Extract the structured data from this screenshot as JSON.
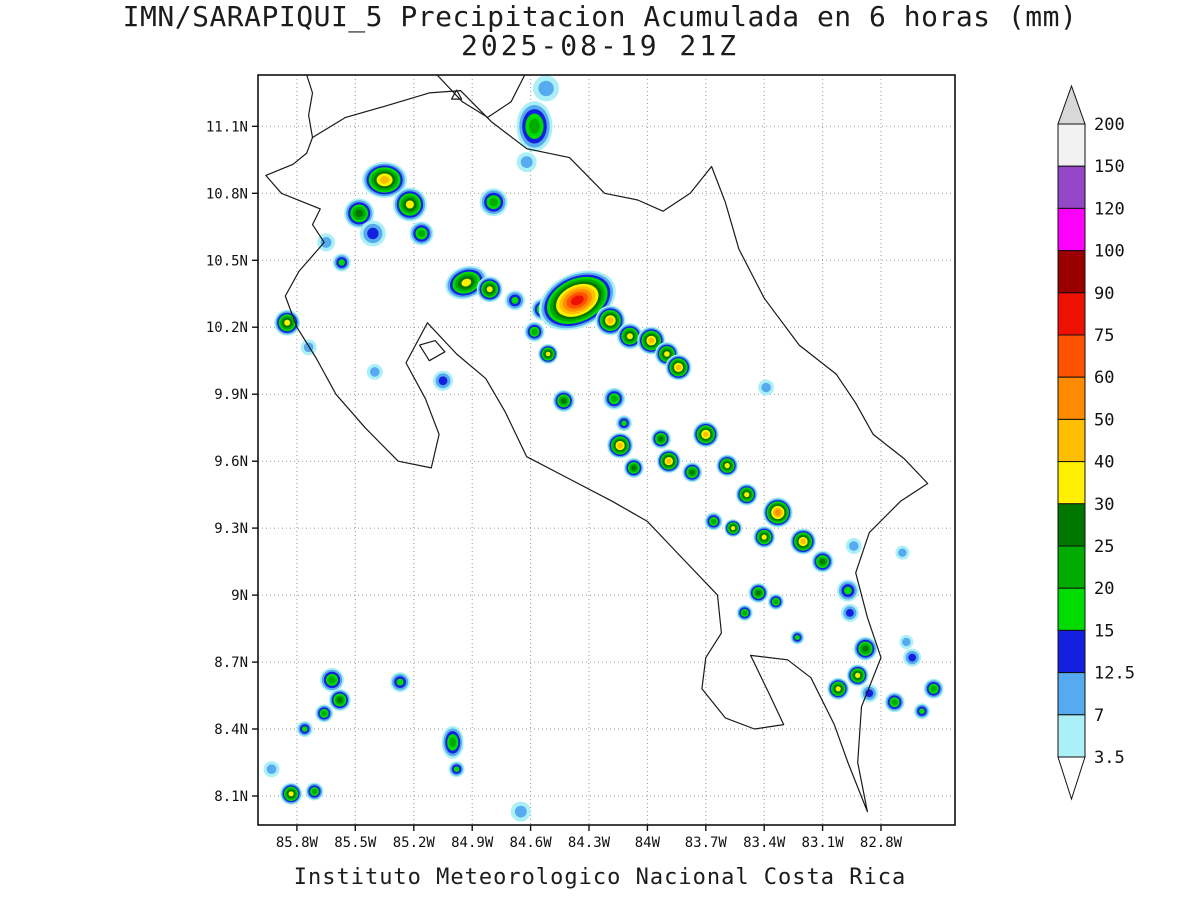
{
  "title": {
    "line1": "IMN/SARAPIQUI_5 Precipitacion Acumulada en 6 horas (mm)",
    "line2": "2025-08-19 21Z"
  },
  "footer": "Instituto Meteorologico Nacional Costa Rica",
  "chart_data": {
    "type": "heatmap",
    "title": "IMN/SARAPIQUI_5 Precipitacion Acumulada en 6 horas (mm)",
    "subtitle": "2025-08-19 21Z",
    "model": "IMN/SARAPIQUI_5",
    "variable": "Precipitacion Acumulada en 6 horas",
    "units": "mm",
    "valid_time": "2025-08-19 21Z",
    "attribution": "Instituto Meteorologico Nacional Costa Rica",
    "axes": {
      "lon_min": -86.0,
      "lon_max": -82.42,
      "lat_min": 7.97,
      "lat_max": 11.33,
      "grid": "dotted",
      "lat_ticks": [
        {
          "value": 11.1,
          "label": "11.1N"
        },
        {
          "value": 10.8,
          "label": "10.8N"
        },
        {
          "value": 10.5,
          "label": "10.5N"
        },
        {
          "value": 10.2,
          "label": "10.2N"
        },
        {
          "value": 9.9,
          "label": "9.9N"
        },
        {
          "value": 9.6,
          "label": "9.6N"
        },
        {
          "value": 9.3,
          "label": "9.3N"
        },
        {
          "value": 9.0,
          "label": "9N"
        },
        {
          "value": 8.7,
          "label": "8.7N"
        },
        {
          "value": 8.4,
          "label": "8.4N"
        },
        {
          "value": 8.1,
          "label": "8.1N"
        }
      ],
      "lon_ticks": [
        {
          "value": -85.8,
          "label": "85.8W"
        },
        {
          "value": -85.5,
          "label": "85.5W"
        },
        {
          "value": -85.2,
          "label": "85.2W"
        },
        {
          "value": -84.9,
          "label": "84.9W"
        },
        {
          "value": -84.6,
          "label": "84.6W"
        },
        {
          "value": -84.3,
          "label": "84.3W"
        },
        {
          "value": -84.0,
          "label": "84W"
        },
        {
          "value": -83.7,
          "label": "83.7W"
        },
        {
          "value": -83.4,
          "label": "83.4W"
        },
        {
          "value": -83.1,
          "label": "83.1W"
        },
        {
          "value": -82.8,
          "label": "82.8W"
        }
      ]
    },
    "levels": [
      {
        "value": 3.5,
        "color": "#ABF0F6"
      },
      {
        "value": 7,
        "color": "#56AAEF"
      },
      {
        "value": 12.5,
        "color": "#1420E0"
      },
      {
        "value": 15,
        "color": "#00DC00"
      },
      {
        "value": 20,
        "color": "#00AC00"
      },
      {
        "value": 25,
        "color": "#007800"
      },
      {
        "value": 30,
        "color": "#FFF000"
      },
      {
        "value": 40,
        "color": "#FFBE00"
      },
      {
        "value": 50,
        "color": "#FF8C00"
      },
      {
        "value": 60,
        "color": "#FF5200"
      },
      {
        "value": 75,
        "color": "#EE1000"
      },
      {
        "value": 90,
        "color": "#9B0000"
      }
    ],
    "colorbar": {
      "labels": [
        "200",
        "150",
        "120",
        "100",
        "90",
        "75",
        "60",
        "50",
        "40",
        "30",
        "25",
        "20",
        "15",
        "12.5",
        "7",
        "3.5"
      ],
      "segments_top_to_bottom": [
        "#F2F2F2",
        "#9448C8",
        "#FF00FF",
        "#9B0000",
        "#EE1000",
        "#FF5200",
        "#FF8C00",
        "#FFBE00",
        "#FFF000",
        "#007800",
        "#00AC00",
        "#00DC00",
        "#1420E0",
        "#56AAEF",
        "#ABF0F6"
      ],
      "top_arrow_color": "#D8D8D8",
      "bottom_arrow_color": "#FFFFFF"
    },
    "island_marker": {
      "lon": -84.98,
      "lat": 11.24
    },
    "map_paths": [
      {
        "name": "costa-rica-outline",
        "closed": true,
        "points": [
          [
            -85.72,
            11.05
          ],
          [
            -85.55,
            11.14
          ],
          [
            -85.35,
            11.19
          ],
          [
            -85.12,
            11.25
          ],
          [
            -84.96,
            11.26
          ],
          [
            -84.8,
            11.12
          ],
          [
            -84.62,
            11.0
          ],
          [
            -84.4,
            10.96
          ],
          [
            -84.22,
            10.8
          ],
          [
            -84.05,
            10.77
          ],
          [
            -83.92,
            10.72
          ],
          [
            -83.78,
            10.8
          ],
          [
            -83.67,
            10.92
          ],
          [
            -83.6,
            10.76
          ],
          [
            -83.53,
            10.55
          ],
          [
            -83.4,
            10.33
          ],
          [
            -83.22,
            10.12
          ],
          [
            -83.03,
            9.99
          ],
          [
            -82.93,
            9.86
          ],
          [
            -82.84,
            9.72
          ],
          [
            -82.68,
            9.61
          ],
          [
            -82.56,
            9.5
          ],
          [
            -82.7,
            9.42
          ],
          [
            -82.86,
            9.28
          ],
          [
            -82.93,
            9.1
          ],
          [
            -82.87,
            8.9
          ],
          [
            -82.8,
            8.72
          ],
          [
            -82.9,
            8.5
          ],
          [
            -82.92,
            8.25
          ],
          [
            -82.87,
            8.03
          ],
          [
            -82.97,
            8.25
          ],
          [
            -83.04,
            8.42
          ],
          [
            -83.16,
            8.63
          ],
          [
            -83.28,
            8.71
          ],
          [
            -83.47,
            8.73
          ],
          [
            -83.37,
            8.55
          ],
          [
            -83.3,
            8.42
          ],
          [
            -83.45,
            8.4
          ],
          [
            -83.6,
            8.45
          ],
          [
            -83.72,
            8.58
          ],
          [
            -83.7,
            8.72
          ],
          [
            -83.62,
            8.83
          ],
          [
            -83.64,
            9.0
          ],
          [
            -83.88,
            9.22
          ],
          [
            -84.0,
            9.33
          ],
          [
            -84.18,
            9.42
          ],
          [
            -84.4,
            9.52
          ],
          [
            -84.62,
            9.62
          ],
          [
            -84.73,
            9.82
          ],
          [
            -84.83,
            9.97
          ],
          [
            -84.98,
            10.08
          ],
          [
            -85.13,
            10.22
          ],
          [
            -85.24,
            10.04
          ],
          [
            -85.14,
            9.88
          ],
          [
            -85.07,
            9.72
          ],
          [
            -85.11,
            9.57
          ],
          [
            -85.28,
            9.6
          ],
          [
            -85.45,
            9.75
          ],
          [
            -85.6,
            9.9
          ],
          [
            -85.7,
            10.06
          ],
          [
            -85.8,
            10.2
          ],
          [
            -85.86,
            10.34
          ],
          [
            -85.79,
            10.45
          ],
          [
            -85.66,
            10.58
          ],
          [
            -85.72,
            10.66
          ],
          [
            -85.68,
            10.73
          ],
          [
            -85.88,
            10.8
          ],
          [
            -85.96,
            10.88
          ],
          [
            -85.82,
            10.93
          ],
          [
            -85.75,
            10.98
          ]
        ]
      },
      {
        "name": "nicaragua-pacific-coast",
        "closed": false,
        "points": [
          [
            -85.72,
            11.05
          ],
          [
            -85.74,
            11.15
          ],
          [
            -85.72,
            11.25
          ],
          [
            -85.75,
            11.33
          ]
        ]
      },
      {
        "name": "lake-nicaragua-shore",
        "closed": false,
        "points": [
          [
            -85.08,
            11.33
          ],
          [
            -84.95,
            11.21
          ],
          [
            -84.82,
            11.14
          ],
          [
            -84.7,
            11.21
          ],
          [
            -84.63,
            11.33
          ]
        ]
      },
      {
        "name": "isla-chira",
        "closed": true,
        "points": [
          [
            -85.17,
            10.12
          ],
          [
            -85.09,
            10.14
          ],
          [
            -85.04,
            10.09
          ],
          [
            -85.12,
            10.05
          ]
        ]
      }
    ],
    "blob_format": [
      "lon",
      "lat",
      "max_level_mm",
      "radius_px",
      "scale_x",
      "scale_y",
      "rotation_deg"
    ],
    "blobs": [
      [
        -84.52,
        11.27,
        7,
        13
      ],
      [
        -84.58,
        11.1,
        20,
        18,
        1,
        1.4,
        0
      ],
      [
        -84.62,
        10.94,
        7,
        10
      ],
      [
        -85.35,
        10.86,
        40,
        18,
        1.25,
        1,
        0
      ],
      [
        -85.48,
        10.71,
        25,
        15
      ],
      [
        -85.22,
        10.75,
        30,
        17
      ],
      [
        -85.41,
        10.62,
        12.5,
        13
      ],
      [
        -85.16,
        10.62,
        20,
        12
      ],
      [
        -84.79,
        10.76,
        20,
        14
      ],
      [
        -85.65,
        10.58,
        7,
        9
      ],
      [
        -85.57,
        10.49,
        15,
        9
      ],
      [
        -84.93,
        10.4,
        30,
        16,
        1.35,
        1,
        -20
      ],
      [
        -84.81,
        10.37,
        30,
        13
      ],
      [
        -84.68,
        10.32,
        15,
        10
      ],
      [
        -84.54,
        10.28,
        20,
        11
      ],
      [
        -84.36,
        10.32,
        75,
        27,
        1.5,
        1,
        -25
      ],
      [
        -84.19,
        10.23,
        40,
        15
      ],
      [
        -84.09,
        10.16,
        30,
        13
      ],
      [
        -83.98,
        10.14,
        40,
        14
      ],
      [
        -83.9,
        10.08,
        30,
        12
      ],
      [
        -83.84,
        10.02,
        40,
        13
      ],
      [
        -84.58,
        10.18,
        20,
        10
      ],
      [
        -84.51,
        10.08,
        30,
        10
      ],
      [
        -85.85,
        10.22,
        30,
        13
      ],
      [
        -85.74,
        10.11,
        7,
        8
      ],
      [
        -85.4,
        10.0,
        7,
        8
      ],
      [
        -85.05,
        9.96,
        12.5,
        10
      ],
      [
        -84.43,
        9.87,
        25,
        11
      ],
      [
        -84.17,
        9.88,
        20,
        11
      ],
      [
        -84.12,
        9.77,
        15,
        8
      ],
      [
        -84.14,
        9.67,
        40,
        13
      ],
      [
        -84.07,
        9.57,
        25,
        10
      ],
      [
        -83.93,
        9.7,
        25,
        10
      ],
      [
        -83.89,
        9.6,
        40,
        12
      ],
      [
        -83.77,
        9.55,
        25,
        10
      ],
      [
        -83.7,
        9.72,
        40,
        13
      ],
      [
        -83.59,
        9.58,
        30,
        11
      ],
      [
        -83.49,
        9.45,
        30,
        11
      ],
      [
        -83.33,
        9.37,
        50,
        15
      ],
      [
        -83.2,
        9.24,
        40,
        13
      ],
      [
        -83.4,
        9.26,
        30,
        11
      ],
      [
        -83.1,
        9.15,
        25,
        11
      ],
      [
        -83.66,
        9.33,
        20,
        9
      ],
      [
        -83.56,
        9.3,
        30,
        9
      ],
      [
        -82.94,
        9.22,
        7,
        8
      ],
      [
        -83.43,
        9.01,
        25,
        10
      ],
      [
        -83.34,
        8.97,
        20,
        8
      ],
      [
        -83.5,
        8.92,
        20,
        8
      ],
      [
        -82.97,
        9.02,
        15,
        11
      ],
      [
        -82.96,
        8.92,
        12.5,
        9
      ],
      [
        -82.69,
        9.19,
        7,
        7
      ],
      [
        -83.23,
        8.81,
        15,
        7
      ],
      [
        -82.88,
        8.76,
        25,
        12
      ],
      [
        -82.92,
        8.64,
        30,
        11
      ],
      [
        -83.02,
        8.58,
        30,
        11
      ],
      [
        -82.86,
        8.56,
        12.5,
        9
      ],
      [
        -82.73,
        8.52,
        20,
        10
      ],
      [
        -82.64,
        8.72,
        12.5,
        9
      ],
      [
        -82.53,
        8.58,
        20,
        10
      ],
      [
        -82.59,
        8.48,
        15,
        8
      ],
      [
        -82.67,
        8.79,
        7,
        7
      ],
      [
        -85.62,
        8.62,
        20,
        12
      ],
      [
        -85.58,
        8.53,
        25,
        11
      ],
      [
        -85.66,
        8.47,
        20,
        9
      ],
      [
        -85.27,
        8.61,
        15,
        10
      ],
      [
        -85.76,
        8.4,
        15,
        8
      ],
      [
        -85.93,
        8.22,
        7,
        8
      ],
      [
        -85.83,
        8.11,
        30,
        11
      ],
      [
        -85.71,
        8.12,
        20,
        9
      ],
      [
        -85.0,
        8.34,
        20,
        11,
        1,
        1.5,
        0
      ],
      [
        -84.98,
        8.22,
        15,
        8
      ],
      [
        -84.65,
        8.03,
        7,
        10
      ],
      [
        -83.39,
        9.93,
        7,
        8
      ]
    ]
  }
}
